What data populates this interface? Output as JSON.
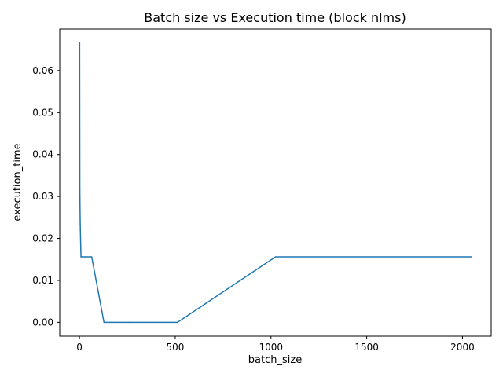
{
  "chart_data": {
    "type": "line",
    "title": "Batch size vs Execution time (block nlms)",
    "xlabel": "batch_size",
    "ylabel": "execution_time",
    "xlim": [
      -103,
      2150
    ],
    "ylim": [
      -0.0033,
      0.0699
    ],
    "x_ticks": [
      0,
      500,
      1000,
      1500,
      2000
    ],
    "x_tick_labels": [
      "0",
      "500",
      "1000",
      "1500",
      "2000"
    ],
    "y_ticks": [
      0.0,
      0.01,
      0.02,
      0.03,
      0.04,
      0.05,
      0.06
    ],
    "y_tick_labels": [
      "0.00",
      "0.01",
      "0.02",
      "0.03",
      "0.04",
      "0.05",
      "0.06"
    ],
    "grid": false,
    "series": [
      {
        "color": "#1f77b4",
        "x": [
          1,
          2,
          4,
          8,
          16,
          32,
          64,
          128,
          256,
          512,
          1024,
          2048
        ],
        "y": [
          0.0666,
          0.0312,
          0.0234,
          0.0156,
          0.0156,
          0.0156,
          0.0156,
          0.0,
          0.0,
          0.0,
          0.0156,
          0.0156
        ]
      }
    ]
  }
}
